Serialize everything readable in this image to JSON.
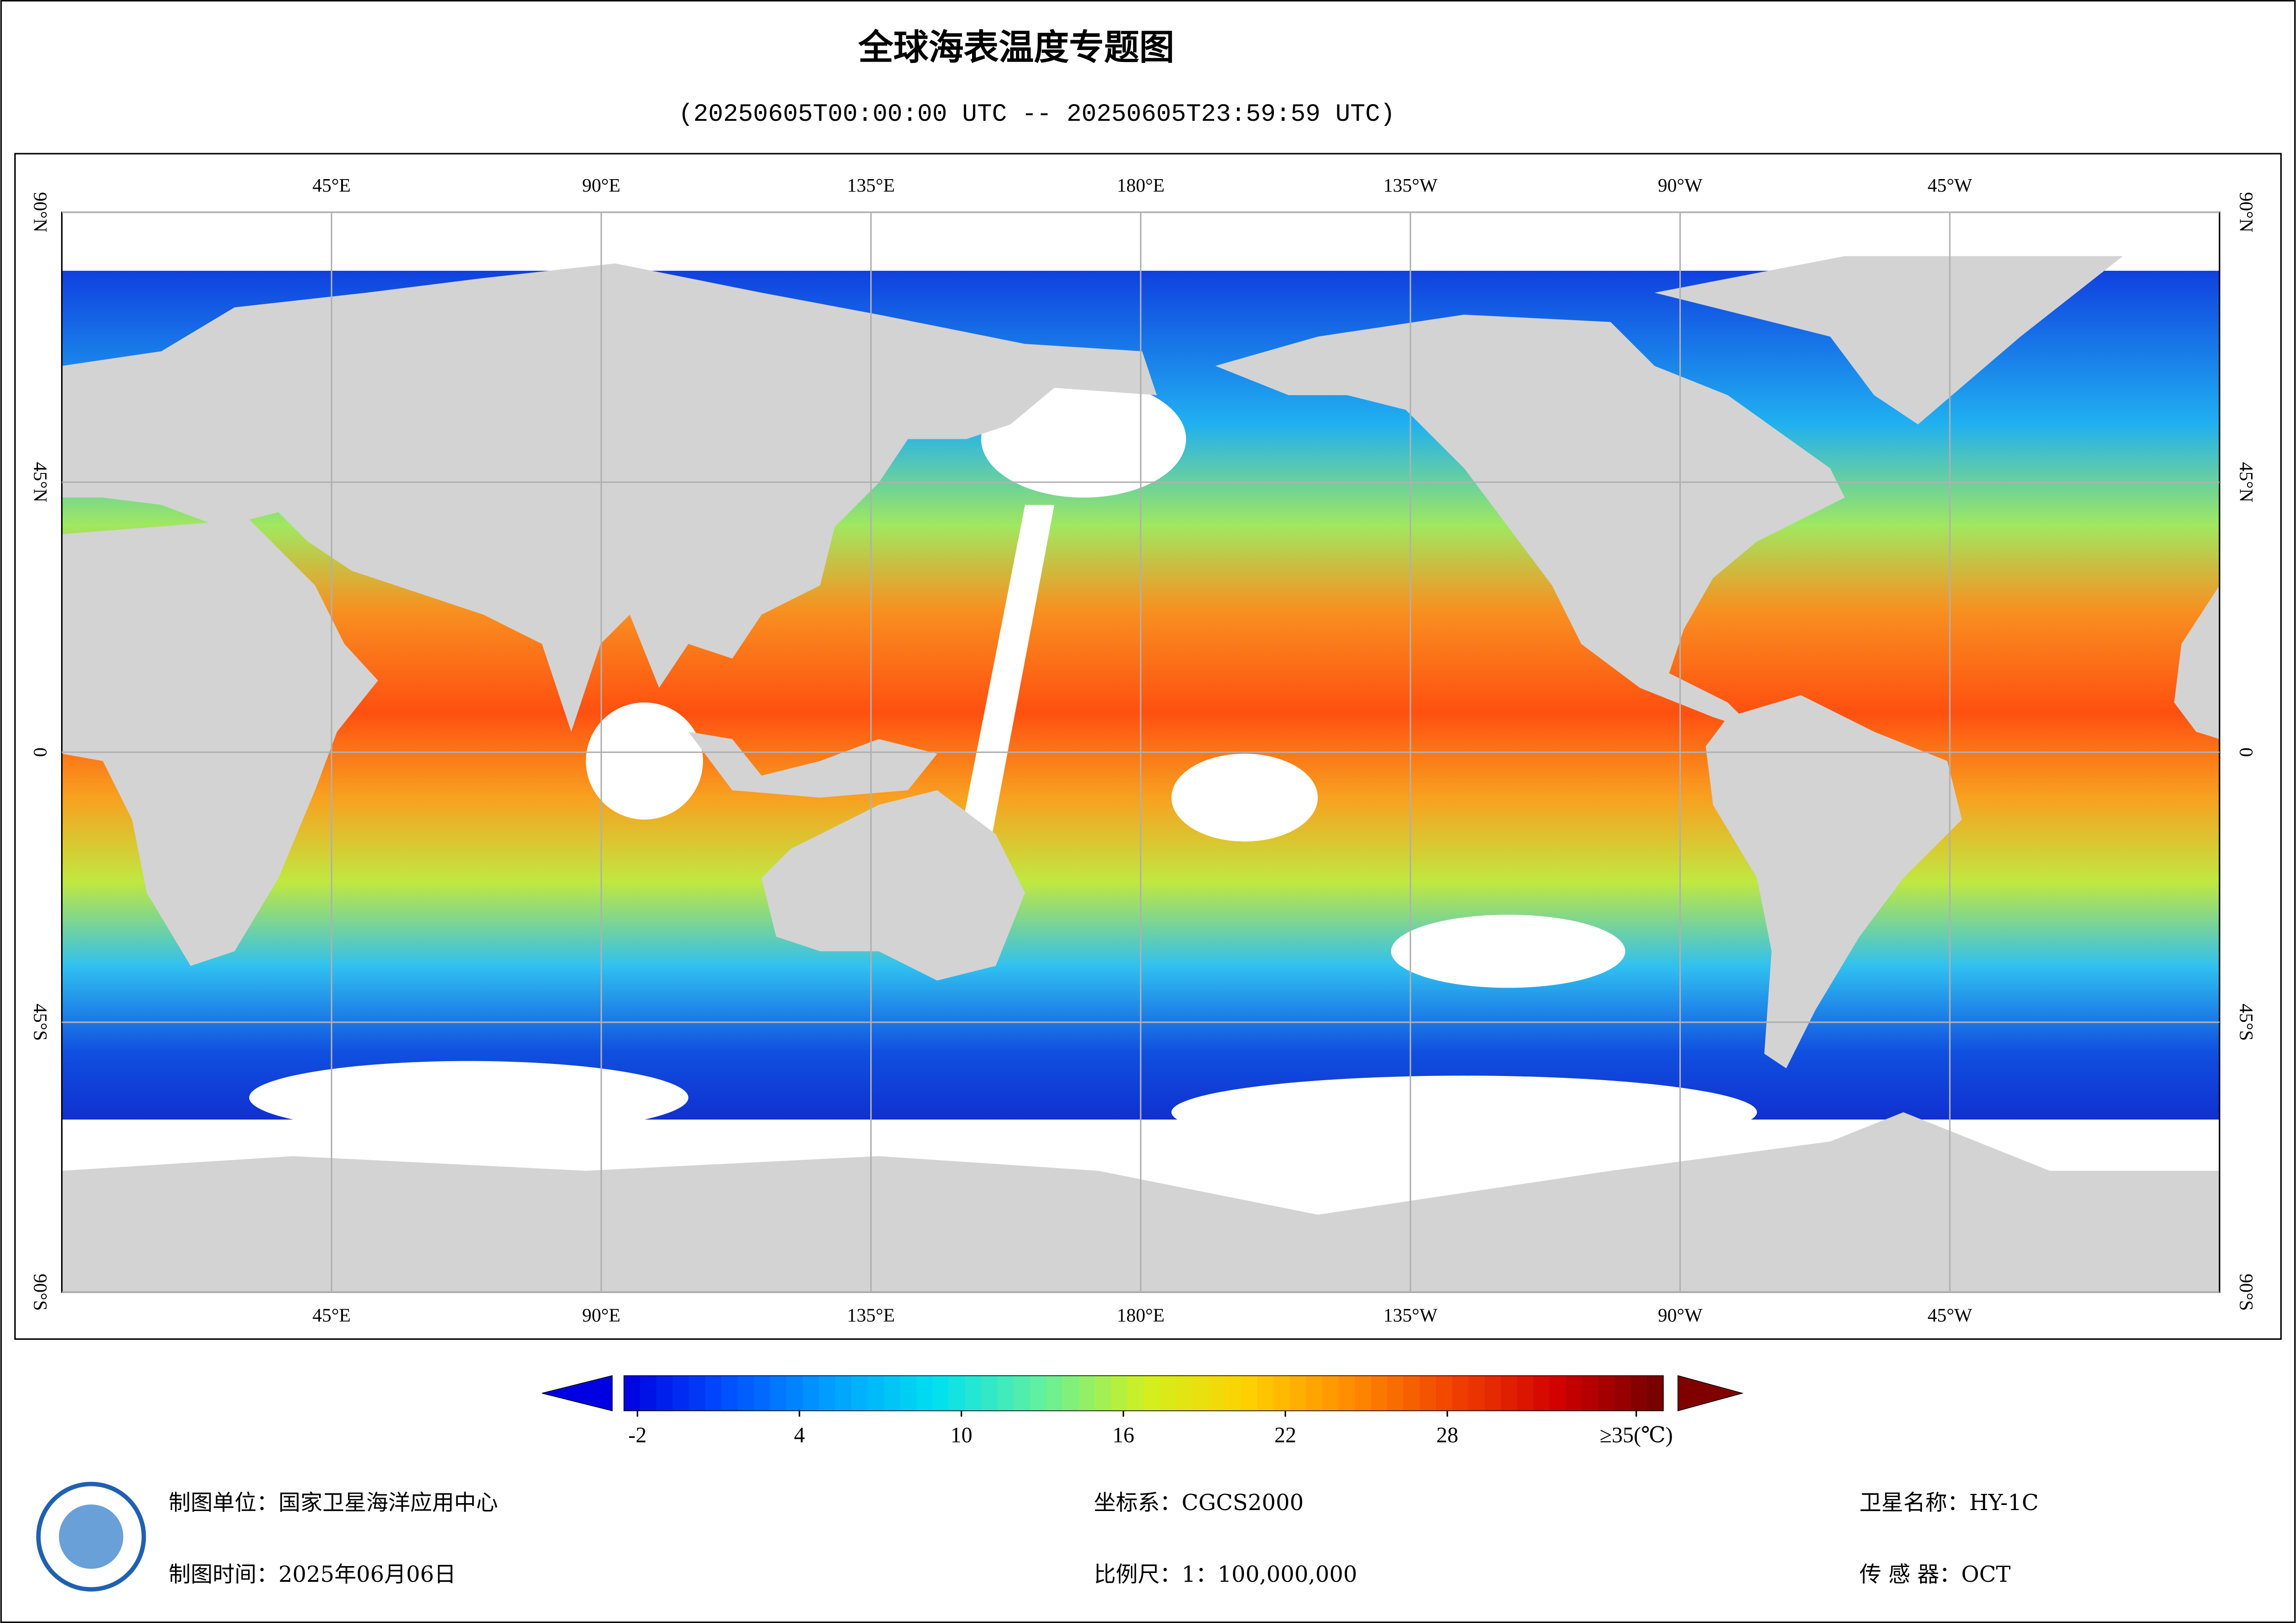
{
  "title": "全球海表温度专题图",
  "subtitle": "(20250605T00:00:00 UTC -- 20250605T23:59:59 UTC)",
  "map": {
    "lon_ticks": [
      {
        "value": 45,
        "label": "45°E"
      },
      {
        "value": 90,
        "label": "90°E"
      },
      {
        "value": 135,
        "label": "135°E"
      },
      {
        "value": 180,
        "label": "180°E"
      },
      {
        "value": 225,
        "label": "135°W"
      },
      {
        "value": 270,
        "label": "90°W"
      },
      {
        "value": 315,
        "label": "45°W"
      }
    ],
    "lat_ticks": [
      {
        "value": 90,
        "label": "90°N"
      },
      {
        "value": 45,
        "label": "45°N"
      },
      0,
      {
        "value": -45,
        "label": "45°S"
      },
      {
        "value": -90,
        "label": "90°S"
      }
    ]
  },
  "colorbar": {
    "range": [
      -2.5,
      36
    ],
    "colors": [
      "#0000e0",
      "#0050ff",
      "#00a0ff",
      "#00e0f0",
      "#60f0a0",
      "#d0f020",
      "#ffd000",
      "#ff8c00",
      "#f04000",
      "#d00000",
      "#700000"
    ],
    "ticks": [
      -2,
      4,
      10,
      16,
      22,
      28,
      {
        "value": 35,
        "label": "≥35(℃)"
      }
    ]
  },
  "footer": {
    "producer": "制图单位：国家卫星海洋应用中心",
    "date": "制图时间：2025年06月06日",
    "crs": "坐标系：CGCS2000",
    "scale": "比例尺：1：100,000,000",
    "satellite": "卫星名称：HY-1C",
    "sensor": "传 感 器：OCT"
  }
}
